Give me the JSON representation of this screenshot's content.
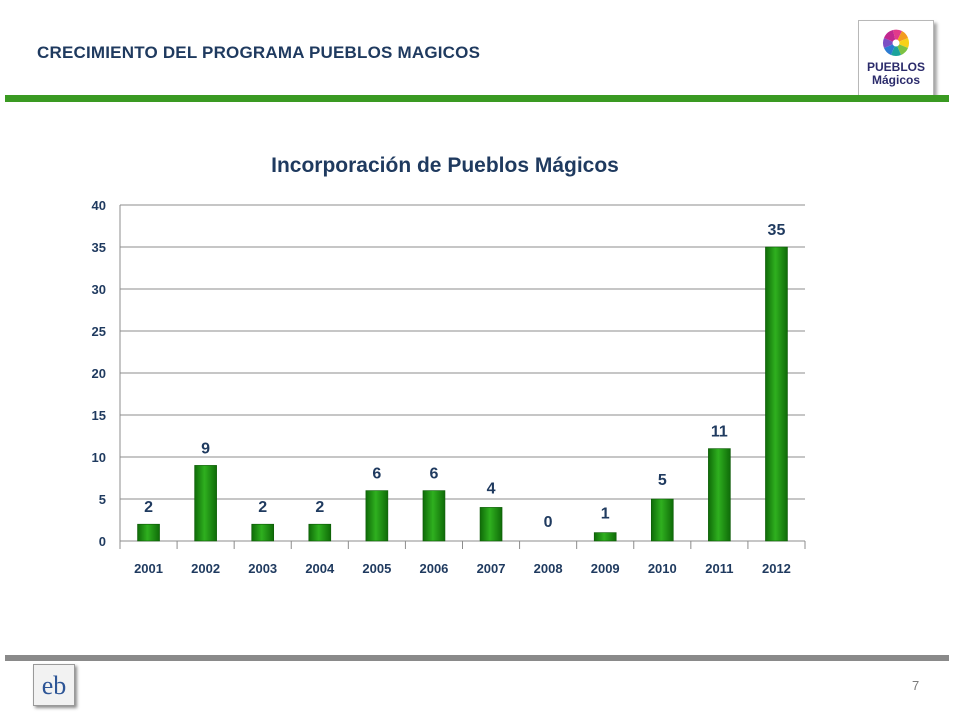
{
  "slide": {
    "title": "CRECIMIENTO DEL PROGRAMA PUEBLOS MAGICOS",
    "page_number": "7",
    "logo_text_top": "PUEBLOS",
    "logo_text_bottom": "Mágicos",
    "footer_logo_text": "eb"
  },
  "colors": {
    "accent": "#3a9a22",
    "bar": "#1e8c12",
    "text": "#1f3a5f",
    "footer_rule": "#8a8a8a"
  },
  "chart_data": {
    "type": "bar",
    "title": "Incorporación de Pueblos Mágicos",
    "xlabel": "",
    "ylabel": "",
    "categories": [
      "2001",
      "2002",
      "2003",
      "2004",
      "2005",
      "2006",
      "2007",
      "2008",
      "2009",
      "2010",
      "2011",
      "2012"
    ],
    "values": [
      2,
      9,
      2,
      2,
      6,
      6,
      4,
      0,
      1,
      5,
      11,
      35
    ],
    "ylim": [
      0,
      40
    ],
    "yticks": [
      0,
      5,
      10,
      15,
      20,
      25,
      30,
      35,
      40
    ],
    "grid": true,
    "legend": "none",
    "data_labels": true
  }
}
